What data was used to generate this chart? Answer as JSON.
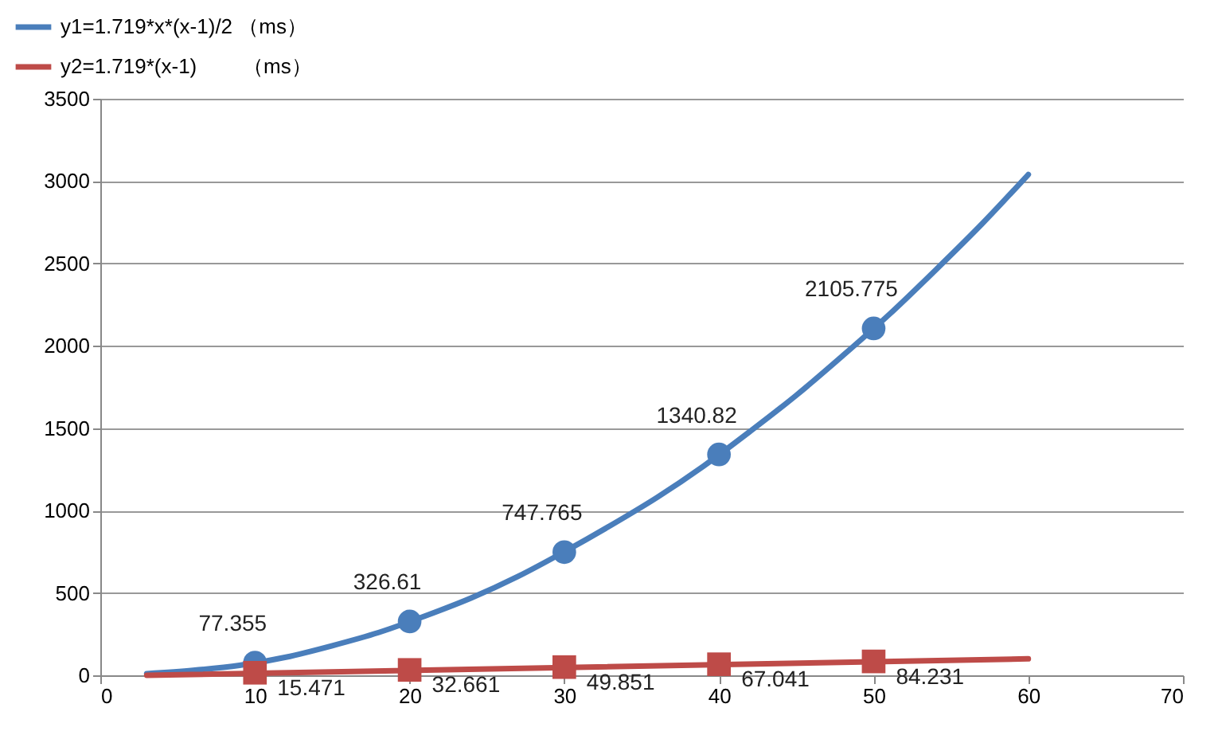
{
  "chart_data": {
    "type": "line",
    "xlim": [
      0,
      70
    ],
    "xticks": [
      0,
      10,
      20,
      30,
      40,
      50,
      60,
      70
    ],
    "ylim": [
      0,
      3500
    ],
    "yticks": [
      0,
      500,
      1000,
      1500,
      2000,
      2500,
      3000,
      3500
    ],
    "grid": "y",
    "legend": "top left",
    "series": [
      {
        "name": "y1=1.719*x*(x-1)/2 （ms）",
        "color": "#4a7ebb",
        "x": [
          3,
          6,
          9,
          12,
          15,
          18,
          21,
          24,
          27,
          30,
          33,
          36,
          39,
          42,
          45,
          48,
          51,
          54,
          57,
          60
        ],
        "values": [
          10,
          30,
          60,
          110,
          180,
          260,
          360,
          470,
          600,
          750,
          910,
          1080,
          1270,
          1480,
          1700,
          1940,
          2190,
          2460,
          2740,
          3040
        ]
      },
      {
        "name": "y2=1.719*(x-1)        （ms）",
        "color": "#be4b48",
        "x": [
          3,
          60
        ],
        "values": [
          0,
          100
        ]
      },
      {
        "type": "scatter",
        "marker": "circle",
        "color": "#4a7ebb",
        "x": [
          10,
          20,
          30,
          40,
          50
        ],
        "values": [
          77.355,
          326.61,
          747.765,
          1340.82,
          2105.775
        ],
        "value_labels": [
          "77.355",
          "326.61",
          "747.765",
          "1340.82",
          "2105.775"
        ]
      },
      {
        "type": "scatter",
        "marker": "square",
        "color": "#be4b48",
        "x": [
          10,
          20,
          30,
          40,
          50
        ],
        "values": [
          15.471,
          32.661,
          49.851,
          67.041,
          84.231
        ],
        "value_labels": [
          "15.471",
          "32.661",
          "49.851",
          "67.041",
          "84.231"
        ]
      }
    ]
  }
}
